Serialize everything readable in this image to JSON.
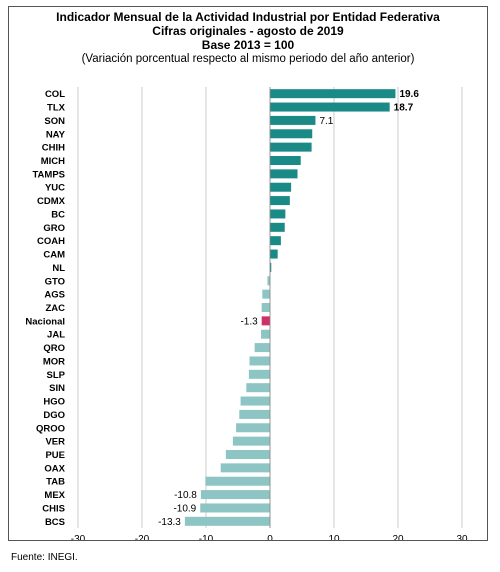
{
  "header": {
    "title_line1": "Indicador Mensual de la Actividad Industrial por Entidad Federativa",
    "title_line2": "Cifras originales - agosto de 2019",
    "title_line3": "Base 2013 = 100",
    "subtitle": "(Variación porcentual respecto al mismo periodo del año anterior)"
  },
  "footer": {
    "source": "Fuente: INEGI."
  },
  "colors": {
    "positive": "#1a8a86",
    "negative": "#8cc5c4",
    "highlight": "#d0306a",
    "grid": "#bfbfbf"
  },
  "chart_data": {
    "type": "bar",
    "orientation": "horizontal",
    "title": "Indicador Mensual de la Actividad Industrial por Entidad Federativa",
    "subtitle": "Cifras originales - agosto de 2019 · Base 2013 = 100",
    "categories": [
      "COL",
      "TLX",
      "SON",
      "NAY",
      "CHIH",
      "MICH",
      "TAMPS",
      "YUC",
      "CDMX",
      "BC",
      "GRO",
      "COAH",
      "CAM",
      "NL",
      "GTO",
      "AGS",
      "ZAC",
      "Nacional",
      "JAL",
      "QRO",
      "MOR",
      "SLP",
      "SIN",
      "HGO",
      "DGO",
      "QROO",
      "VER",
      "PUE",
      "OAX",
      "TAB",
      "MEX",
      "CHIS",
      "BCS"
    ],
    "values": [
      19.6,
      18.7,
      7.1,
      6.6,
      6.5,
      4.8,
      4.3,
      3.3,
      3.1,
      2.4,
      2.3,
      1.7,
      1.2,
      0.2,
      -0.4,
      -1.2,
      -1.3,
      -1.3,
      -1.4,
      -2.4,
      -3.2,
      -3.3,
      -3.7,
      -4.6,
      -4.8,
      -5.3,
      -5.8,
      -6.9,
      -7.7,
      -10.1,
      -10.8,
      -10.9,
      -13.3
    ],
    "labels": {
      "COL": "19.6",
      "TLX": "18.7",
      "SON": "7.1",
      "Nacional": "-1.3",
      "MEX": "-10.8",
      "CHIS": "-10.9",
      "BCS": "-13.3"
    },
    "highlight": "Nacional",
    "xlim": [
      -30,
      30
    ],
    "xticks": [
      "-30",
      "-20",
      "-10",
      "0",
      "10",
      "20",
      "30"
    ],
    "grid": true
  }
}
